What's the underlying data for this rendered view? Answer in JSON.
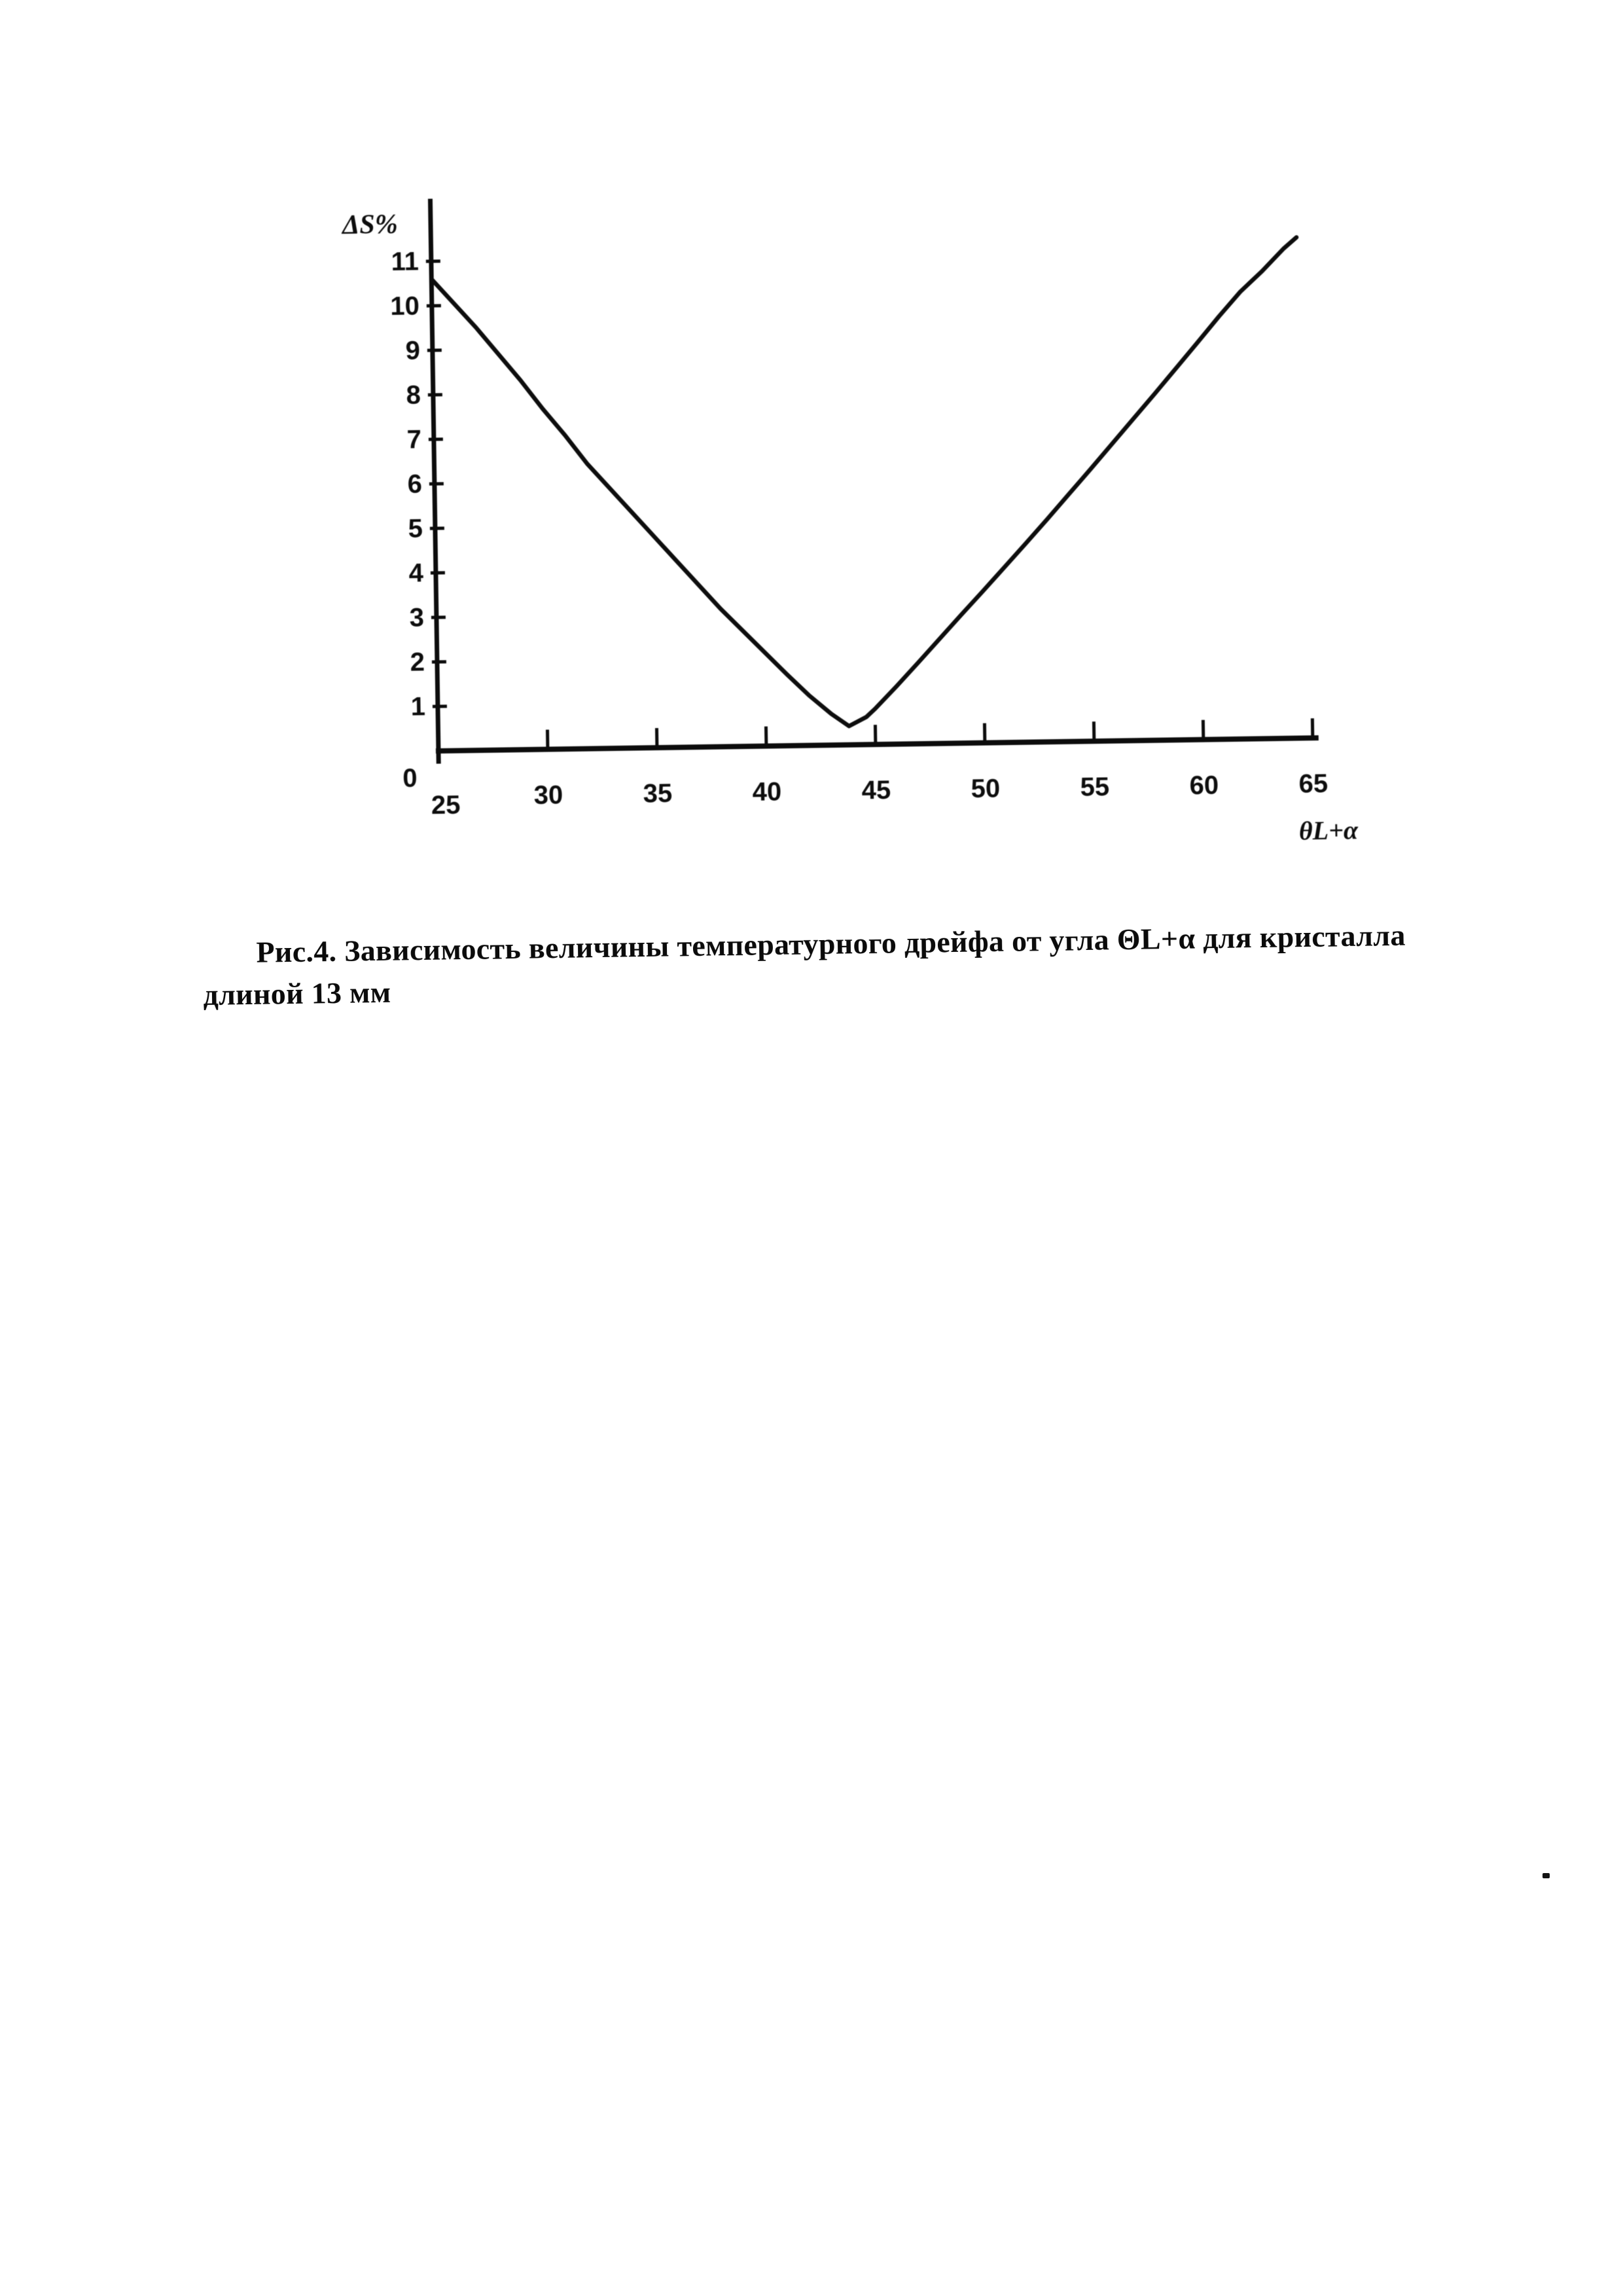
{
  "page": {
    "paper_color": "#ffffff",
    "ink_color": "#0d0d0d"
  },
  "caption": {
    "lines": [
      "Рис.4. Зависимость величины температурного дрейфа от угла ΘL+α для кристалла",
      "длиной 13 мм"
    ]
  },
  "chart_data": {
    "type": "line",
    "title": "",
    "xlabel": "θL+α",
    "ylabel": "ΔS%",
    "xlim": [
      25,
      65
    ],
    "ylim": [
      0,
      11
    ],
    "x_ticks": [
      25,
      30,
      35,
      40,
      45,
      50,
      55,
      60,
      65
    ],
    "y_ticks": [
      0,
      1,
      2,
      3,
      4,
      5,
      6,
      7,
      8,
      9,
      10,
      11
    ],
    "grid": false,
    "legend": null,
    "series": [
      {
        "name": "ΔS% температурный дрейф",
        "points": [
          [
            25,
            10.6
          ],
          [
            26,
            10.05
          ],
          [
            27,
            9.5
          ],
          [
            28,
            8.9
          ],
          [
            29,
            8.3
          ],
          [
            30,
            7.65
          ],
          [
            31,
            7.05
          ],
          [
            32,
            6.4
          ],
          [
            33,
            5.85
          ],
          [
            34,
            5.3
          ],
          [
            35,
            4.75
          ],
          [
            36,
            4.2
          ],
          [
            37,
            3.65
          ],
          [
            38,
            3.1
          ],
          [
            39,
            2.6
          ],
          [
            40,
            2.1
          ],
          [
            41,
            1.6
          ],
          [
            42,
            1.12
          ],
          [
            43,
            0.7
          ],
          [
            43.8,
            0.42
          ],
          [
            44.6,
            0.62
          ],
          [
            45,
            0.8
          ],
          [
            46,
            1.3
          ],
          [
            47,
            1.82
          ],
          [
            48,
            2.35
          ],
          [
            49,
            2.88
          ],
          [
            50,
            3.4
          ],
          [
            51,
            3.93
          ],
          [
            52,
            4.46
          ],
          [
            53,
            5.0
          ],
          [
            54,
            5.55
          ],
          [
            55,
            6.1
          ],
          [
            56,
            6.66
          ],
          [
            57,
            7.22
          ],
          [
            58,
            7.78
          ],
          [
            59,
            8.35
          ],
          [
            60,
            8.92
          ],
          [
            61,
            9.5
          ],
          [
            62,
            10.05
          ],
          [
            63,
            10.5
          ],
          [
            64,
            11.0
          ],
          [
            64.6,
            11.25
          ]
        ]
      }
    ]
  }
}
